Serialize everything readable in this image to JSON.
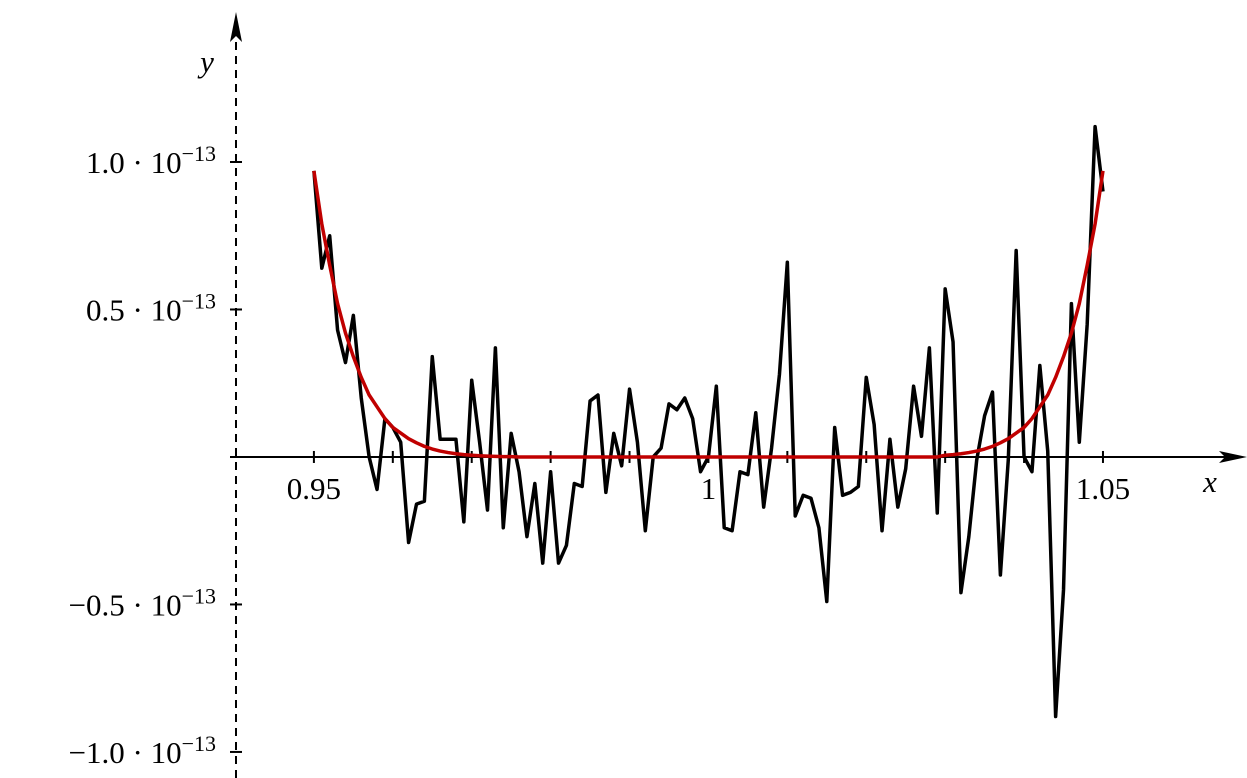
{
  "chart_data": {
    "type": "line",
    "x_axis_label": "x",
    "y_axis_label": "y",
    "xlim": [
      0.94,
      1.068
    ],
    "ylim": [
      -1.09e-13,
      1.5e-13
    ],
    "xticks": [
      0.95,
      1,
      1.05
    ],
    "x_minor_ticks": [
      0.96,
      0.97,
      0.98,
      0.99,
      1.01,
      1.02,
      1.03,
      1.04
    ],
    "yticks": [
      {
        "value": 1e-13,
        "label": "1.0 · 10−13"
      },
      {
        "value": 5e-14,
        "label": "0.5 · 10−13"
      },
      {
        "value": -5e-14,
        "label": "−0.5 · 10−13"
      },
      {
        "value": -1e-13,
        "label": "−1.0 · 10−13"
      }
    ],
    "x": [
      0.95,
      0.951,
      0.952,
      0.953,
      0.954,
      0.955,
      0.956,
      0.957,
      0.958,
      0.959,
      0.96,
      0.961,
      0.962,
      0.963,
      0.964,
      0.965,
      0.966,
      0.967,
      0.968,
      0.969,
      0.97,
      0.971,
      0.972,
      0.973,
      0.974,
      0.975,
      0.976,
      0.977,
      0.978,
      0.979,
      0.98,
      0.981,
      0.982,
      0.983,
      0.984,
      0.985,
      0.986,
      0.987,
      0.988,
      0.989,
      0.99,
      0.991,
      0.992,
      0.993,
      0.994,
      0.995,
      0.996,
      0.997,
      0.998,
      0.999,
      1.0,
      1.001,
      1.002,
      1.003,
      1.004,
      1.005,
      1.006,
      1.007,
      1.008,
      1.009,
      1.01,
      1.011,
      1.012,
      1.013,
      1.014,
      1.015,
      1.016,
      1.017,
      1.018,
      1.019,
      1.02,
      1.021,
      1.022,
      1.023,
      1.024,
      1.025,
      1.026,
      1.027,
      1.028,
      1.029,
      1.03,
      1.031,
      1.032,
      1.033,
      1.034,
      1.035,
      1.036,
      1.037,
      1.038,
      1.039,
      1.04,
      1.041,
      1.042,
      1.043,
      1.044,
      1.045,
      1.046,
      1.047,
      1.048,
      1.049,
      1.05
    ],
    "series": [
      {
        "color": "#000000",
        "values": [
          9.7e-14,
          6.4e-14,
          7.5e-14,
          4.3e-14,
          3.2e-14,
          4.8e-14,
          2e-14,
          0.0,
          -1.1e-14,
          1.3e-14,
          1e-14,
          5e-15,
          -2.9e-14,
          -1.6e-14,
          -1.5e-14,
          3.4e-14,
          6e-15,
          6e-15,
          6e-15,
          -2.2e-14,
          2.6e-14,
          5e-15,
          -1.8e-14,
          3.7e-14,
          -2.4e-14,
          8e-15,
          -5e-15,
          -2.7e-14,
          -9e-15,
          -3.6e-14,
          -5e-15,
          -3.6e-14,
          -3e-14,
          -9e-15,
          -1e-14,
          1.9e-14,
          2.1e-14,
          -1.2e-14,
          8e-15,
          -3e-15,
          2.3e-14,
          5e-15,
          -2.5e-14,
          0.0,
          3e-15,
          1.8e-14,
          1.6e-14,
          2e-14,
          1.3e-14,
          -5e-15,
          0.0,
          2.4e-14,
          -2.4e-14,
          -2.5e-14,
          -5e-15,
          -6e-15,
          1.5e-14,
          -1.7e-14,
          3e-15,
          2.8e-14,
          6.6e-14,
          -2e-14,
          -1.3e-14,
          -1.4e-14,
          -2.4e-14,
          -4.9e-14,
          1e-14,
          -1.3e-14,
          -1.2e-14,
          -1e-14,
          2.7e-14,
          1.1e-14,
          -2.5e-14,
          6e-15,
          -1.7e-14,
          -4e-15,
          2.4e-14,
          7e-15,
          3.7e-14,
          -1.9e-14,
          5.7e-14,
          3.9e-14,
          -4.6e-14,
          -2.7e-14,
          -1e-15,
          1.4e-14,
          2.2e-14,
          -4e-14,
          -1e-15,
          7e-14,
          0.0,
          -5e-15,
          3.1e-14,
          2e-15,
          -8.8e-14,
          -4.5e-14,
          5.2e-14,
          5e-15,
          4.5e-14,
          1.12e-13,
          9e-14
        ]
      },
      {
        "color": "#c00000",
        "values": [
          9.7e-14,
          7.9e-14,
          6.5e-14,
          5.2e-14,
          4.2e-14,
          3.4e-14,
          2.7e-14,
          2.1e-14,
          1.7e-14,
          1.3e-14,
          1e-14,
          8.1e-15,
          6.2e-15,
          4.8e-15,
          3.6e-15,
          2.7e-15,
          2e-15,
          1.5e-15,
          1.1e-15,
          8e-16,
          6e-16,
          4e-16,
          3e-16,
          2e-16,
          1e-16,
          1e-16,
          0,
          0,
          0,
          0,
          0,
          0,
          0,
          0,
          0,
          0,
          0,
          0,
          0,
          0,
          0,
          0,
          0,
          0,
          0,
          0,
          0,
          0,
          0,
          0,
          0,
          0,
          0,
          0,
          0,
          0,
          0,
          0,
          0,
          0,
          0,
          0,
          0,
          0,
          0,
          0,
          0,
          0,
          0,
          0,
          0,
          0,
          0,
          0,
          0,
          0,
          0,
          0,
          0,
          0,
          6e-16,
          8e-16,
          1.1e-15,
          1.5e-15,
          2e-15,
          2.7e-15,
          3.6e-15,
          4.8e-15,
          6.2e-15,
          8.1e-15,
          1e-14,
          1.3e-14,
          1.7e-14,
          2.1e-14,
          2.7e-14,
          3.4e-14,
          4.2e-14,
          5.2e-14,
          6.5e-14,
          7.9e-14,
          9.7e-14
        ]
      }
    ]
  }
}
